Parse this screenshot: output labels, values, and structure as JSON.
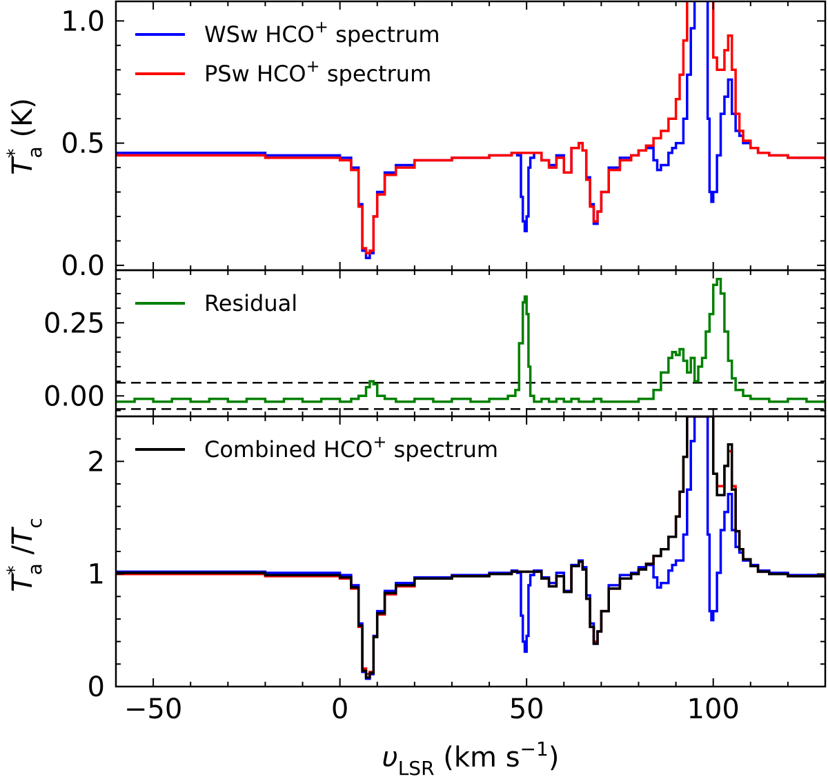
{
  "chart_data": [
    {
      "panel": "top",
      "type": "line",
      "step": true,
      "xlim": [
        -60,
        130
      ],
      "ylim": [
        -0.02,
        1.08
      ],
      "yticks": [
        0.0,
        0.5,
        1.0
      ],
      "ytick_labels": [
        "0.0",
        "0.5",
        "1.0"
      ],
      "ylabel": {
        "main": "T",
        "sup": "*",
        "sub": "a",
        "unit": " (K)"
      },
      "legend_location": "upper-left",
      "series": [
        {
          "name": "WSw HCO⁺ spectrum",
          "legend_label": {
            "pre": "WSw HCO",
            "sup": "+",
            "post": " spectrum"
          },
          "color": "#0000ff",
          "x": [
            -60,
            -20,
            0,
            3,
            5,
            6,
            7,
            8,
            9,
            10,
            12,
            15,
            20,
            30,
            40,
            46,
            47.5,
            48.5,
            49,
            49.5,
            50,
            50.5,
            51,
            52,
            54,
            56,
            58,
            60,
            62,
            64,
            65,
            66,
            67,
            68,
            69,
            70,
            72,
            75,
            78,
            80,
            82,
            84,
            85,
            86,
            88,
            89,
            90,
            92,
            93,
            94,
            95,
            96,
            97,
            97.5,
            98,
            98.5,
            99,
            99.5,
            100,
            101,
            102,
            103,
            104,
            105,
            106,
            107,
            108,
            110,
            112,
            115,
            120,
            125,
            130
          ],
          "y": [
            0.46,
            0.45,
            0.44,
            0.4,
            0.25,
            0.06,
            0.03,
            0.05,
            0.2,
            0.3,
            0.38,
            0.41,
            0.43,
            0.44,
            0.45,
            0.46,
            0.45,
            0.28,
            0.18,
            0.14,
            0.2,
            0.4,
            0.44,
            0.46,
            0.43,
            0.41,
            0.45,
            0.38,
            0.48,
            0.5,
            0.47,
            0.36,
            0.25,
            0.17,
            0.22,
            0.3,
            0.4,
            0.44,
            0.45,
            0.47,
            0.48,
            0.43,
            0.39,
            0.41,
            0.46,
            0.48,
            0.5,
            0.6,
            0.78,
            0.97,
            1.1,
            1.1,
            1.1,
            1.1,
            1.1,
            0.6,
            0.3,
            0.26,
            0.3,
            0.45,
            0.62,
            0.69,
            0.76,
            0.62,
            0.55,
            0.53,
            0.5,
            0.48,
            0.46,
            0.45,
            0.44,
            0.44,
            0.44
          ]
        },
        {
          "name": "PSw HCO⁺ spectrum",
          "legend_label": {
            "pre": "PSw HCO",
            "sup": "+",
            "post": " spectrum"
          },
          "color": "#ff0000",
          "x": [
            -60,
            -20,
            0,
            3,
            5,
            6,
            7,
            8,
            9,
            10,
            12,
            15,
            20,
            30,
            40,
            46,
            48,
            50,
            52,
            54,
            56,
            58,
            60,
            62,
            64,
            65,
            66,
            67,
            68,
            69,
            70,
            72,
            75,
            78,
            80,
            82,
            84,
            86,
            88,
            90,
            91,
            92,
            93,
            94,
            95,
            96,
            97,
            97.5,
            98,
            98.5,
            99,
            99.5,
            100,
            101,
            102,
            103,
            104,
            105,
            106,
            107,
            108,
            110,
            112,
            115,
            120,
            125,
            130
          ],
          "y": [
            0.45,
            0.44,
            0.43,
            0.39,
            0.24,
            0.07,
            0.05,
            0.06,
            0.2,
            0.29,
            0.37,
            0.4,
            0.43,
            0.44,
            0.45,
            0.46,
            0.46,
            0.46,
            0.46,
            0.43,
            0.4,
            0.44,
            0.38,
            0.48,
            0.5,
            0.47,
            0.35,
            0.24,
            0.18,
            0.22,
            0.3,
            0.39,
            0.43,
            0.45,
            0.47,
            0.49,
            0.52,
            0.55,
            0.6,
            0.68,
            0.78,
            0.92,
            1.1,
            1.1,
            1.1,
            1.1,
            1.1,
            1.1,
            1.1,
            1.1,
            1.1,
            1.1,
            0.85,
            0.8,
            0.8,
            0.88,
            0.94,
            0.8,
            0.62,
            0.55,
            0.51,
            0.48,
            0.46,
            0.45,
            0.44,
            0.44,
            0.43
          ]
        }
      ]
    },
    {
      "panel": "middle",
      "type": "line",
      "step": true,
      "xlim": [
        -60,
        130
      ],
      "ylim": [
        -0.07,
        0.43
      ],
      "yticks": [
        0.0,
        0.25
      ],
      "ytick_labels": [
        "0.00",
        "0.25"
      ],
      "hlines": [
        0.045,
        -0.045
      ],
      "hline_style": "dashed",
      "legend_location": "upper-left",
      "series": [
        {
          "name": "Residual",
          "legend_label": {
            "pre": "Residual",
            "sup": "",
            "post": ""
          },
          "color": "#008000",
          "x": [
            -60,
            -55,
            -50,
            -45,
            -40,
            -35,
            -30,
            -25,
            -20,
            -15,
            -10,
            -5,
            0,
            3,
            5,
            7,
            8,
            9,
            10,
            12,
            15,
            20,
            25,
            30,
            35,
            40,
            45,
            47,
            48,
            49,
            49.5,
            50,
            50.5,
            51,
            52,
            54,
            56,
            58,
            60,
            62,
            64,
            66,
            68,
            70,
            72,
            75,
            78,
            80,
            82,
            84,
            86,
            88,
            89,
            90,
            91,
            92,
            93,
            94,
            95,
            96,
            97,
            98,
            99,
            100,
            101,
            102,
            103,
            104,
            105,
            106,
            108,
            110,
            115,
            120,
            125,
            130
          ],
          "y": [
            -0.02,
            -0.01,
            -0.02,
            -0.01,
            -0.02,
            -0.01,
            -0.02,
            -0.01,
            -0.02,
            -0.01,
            -0.02,
            -0.01,
            -0.02,
            -0.01,
            0.0,
            0.03,
            0.05,
            0.04,
            0.0,
            -0.01,
            -0.02,
            -0.01,
            -0.02,
            -0.01,
            -0.02,
            -0.01,
            0.0,
            0.02,
            0.18,
            0.32,
            0.34,
            0.28,
            0.1,
            0.0,
            -0.02,
            -0.01,
            -0.02,
            -0.01,
            -0.02,
            -0.01,
            -0.02,
            -0.02,
            -0.01,
            -0.02,
            -0.02,
            -0.02,
            -0.02,
            -0.01,
            -0.01,
            0.02,
            0.08,
            0.13,
            0.15,
            0.14,
            0.16,
            0.12,
            0.08,
            0.13,
            0.05,
            0.1,
            0.13,
            0.22,
            0.28,
            0.38,
            0.4,
            0.35,
            0.22,
            0.12,
            0.06,
            0.02,
            0.0,
            -0.01,
            -0.02,
            -0.01,
            -0.02,
            -0.01
          ]
        }
      ]
    },
    {
      "panel": "bottom",
      "type": "line",
      "step": true,
      "xlim": [
        -60,
        130
      ],
      "ylim": [
        0,
        2.4
      ],
      "yticks": [
        0,
        1,
        2
      ],
      "ytick_labels": [
        "0",
        "1",
        "2"
      ],
      "xticks": [
        -50,
        0,
        50,
        100
      ],
      "xtick_labels": [
        "−50",
        "0",
        "50",
        "100"
      ],
      "xlabel": {
        "main": "υ",
        "sub": "LSR",
        "unit_pre": " (km s",
        "unit_sup": "−1",
        "unit_post": ")"
      },
      "ylabel": {
        "main": "T",
        "sup": "*",
        "sub": "a",
        "mid": " /",
        "main2": "T",
        "sub2": "c"
      },
      "legend_location": "upper-left",
      "series": [
        {
          "name": "WSw normalized",
          "legend_label": null,
          "color": "#0000ff",
          "x": [
            -60,
            -20,
            0,
            3,
            5,
            6,
            7,
            8,
            9,
            10,
            12,
            15,
            20,
            30,
            40,
            46,
            47.5,
            48.5,
            49,
            49.5,
            50,
            50.5,
            51,
            52,
            54,
            56,
            58,
            60,
            62,
            64,
            65,
            66,
            67,
            68,
            69,
            70,
            72,
            75,
            78,
            80,
            82,
            84,
            85,
            86,
            88,
            89,
            90,
            92,
            93,
            94,
            95,
            96,
            97,
            97.5,
            98,
            98.5,
            99,
            99.5,
            100,
            101,
            102,
            103,
            104,
            105,
            106,
            107,
            108,
            110,
            112,
            115,
            120,
            125,
            130
          ],
          "y": [
            1.02,
            1.01,
            0.99,
            0.9,
            0.56,
            0.13,
            0.07,
            0.11,
            0.45,
            0.67,
            0.85,
            0.92,
            0.97,
            0.99,
            1.01,
            1.03,
            1.01,
            0.63,
            0.4,
            0.31,
            0.45,
            0.9,
            0.99,
            1.03,
            0.97,
            0.92,
            1.01,
            0.85,
            1.08,
            1.12,
            1.06,
            0.81,
            0.56,
            0.38,
            0.49,
            0.67,
            0.9,
            0.99,
            1.01,
            1.06,
            1.08,
            0.97,
            0.88,
            0.92,
            1.03,
            1.08,
            1.12,
            1.35,
            1.75,
            2.18,
            2.4,
            2.4,
            2.4,
            2.4,
            2.4,
            1.35,
            0.67,
            0.59,
            0.67,
            1.01,
            1.39,
            1.55,
            1.71,
            1.39,
            1.24,
            1.19,
            1.12,
            1.08,
            1.03,
            1.01,
            0.99,
            0.99,
            0.99
          ]
        },
        {
          "name": "PSw normalized",
          "legend_label": null,
          "color": "#ff0000",
          "x": [
            -60,
            -20,
            0,
            3,
            5,
            6,
            7,
            8,
            9,
            10,
            12,
            15,
            20,
            30,
            40,
            46,
            48,
            50,
            52,
            54,
            56,
            58,
            60,
            62,
            64,
            65,
            66,
            67,
            68,
            69,
            70,
            72,
            75,
            78,
            80,
            82,
            84,
            86,
            88,
            90,
            91,
            92,
            93,
            94,
            95,
            96,
            97,
            97.5,
            98,
            98.5,
            99,
            99.5,
            100,
            101,
            102,
            103,
            104,
            105,
            106,
            107,
            108,
            110,
            112,
            115,
            120,
            125,
            130
          ],
          "y": [
            1.0,
            0.98,
            0.96,
            0.87,
            0.53,
            0.16,
            0.11,
            0.13,
            0.44,
            0.64,
            0.82,
            0.89,
            0.96,
            0.98,
            1.0,
            1.02,
            1.02,
            1.02,
            1.02,
            0.96,
            0.89,
            0.98,
            0.84,
            1.07,
            1.11,
            1.04,
            0.78,
            0.53,
            0.4,
            0.49,
            0.67,
            0.87,
            0.96,
            1.0,
            1.04,
            1.09,
            1.16,
            1.22,
            1.33,
            1.51,
            1.73,
            2.04,
            2.4,
            2.4,
            2.4,
            2.4,
            2.4,
            2.4,
            2.4,
            2.4,
            2.4,
            2.4,
            1.89,
            1.78,
            1.78,
            1.96,
            2.09,
            1.78,
            1.38,
            1.22,
            1.13,
            1.07,
            1.02,
            1.0,
            0.98,
            0.98,
            0.96
          ]
        },
        {
          "name": "Combined HCO⁺ spectrum",
          "legend_label": {
            "pre": "Combined HCO",
            "sup": "+",
            "post": " spectrum"
          },
          "color": "#000000",
          "x": [
            -60,
            -20,
            0,
            3,
            5,
            6,
            7,
            8,
            9,
            10,
            12,
            15,
            20,
            30,
            40,
            46,
            48,
            50,
            52,
            54,
            56,
            58,
            60,
            62,
            64,
            65,
            66,
            67,
            68,
            69,
            70,
            72,
            75,
            78,
            80,
            82,
            84,
            86,
            88,
            90,
            91,
            92,
            93,
            94,
            95,
            96,
            97,
            97.5,
            98,
            98.5,
            99,
            99.5,
            100,
            101,
            102,
            103,
            104,
            105,
            106,
            107,
            108,
            110,
            112,
            115,
            120,
            125,
            130
          ],
          "y": [
            1.01,
            0.99,
            0.97,
            0.88,
            0.54,
            0.14,
            0.08,
            0.12,
            0.44,
            0.65,
            0.83,
            0.9,
            0.96,
            0.98,
            1.0,
            1.02,
            1.02,
            1.02,
            1.02,
            0.96,
            0.89,
            0.98,
            0.84,
            1.07,
            1.11,
            1.04,
            0.78,
            0.53,
            0.38,
            0.49,
            0.67,
            0.87,
            0.96,
            1.0,
            1.04,
            1.09,
            1.16,
            1.22,
            1.33,
            1.51,
            1.73,
            2.04,
            2.4,
            2.4,
            2.4,
            2.4,
            2.4,
            2.4,
            2.4,
            2.4,
            2.4,
            2.4,
            1.89,
            1.7,
            1.7,
            1.96,
            2.15,
            1.75,
            1.38,
            1.22,
            1.13,
            1.07,
            1.02,
            1.0,
            0.98,
            0.98,
            0.98
          ]
        }
      ]
    }
  ]
}
